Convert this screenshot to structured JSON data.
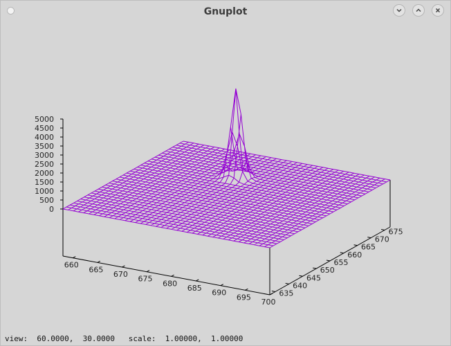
{
  "window": {
    "title": "Gnuplot",
    "controls": {
      "minimize_icon": "chevron-down-icon",
      "maximize_icon": "chevron-up-icon",
      "close_icon": "close-icon"
    }
  },
  "status": {
    "text": "view:  60.0000,  30.0000   scale:  1.00000,  1.00000"
  },
  "colors": {
    "surface": "#9400d3",
    "axes": "#000000",
    "background": "#d6d6d6"
  },
  "chart_data": {
    "type": "surface",
    "title": "",
    "view": [
      60,
      30
    ],
    "scale": [
      1,
      1
    ],
    "x_ticks": [
      660,
      665,
      670,
      675,
      680,
      685,
      690,
      695,
      700
    ],
    "y_ticks": [
      635,
      640,
      645,
      650,
      655,
      660,
      665,
      670,
      675
    ],
    "z_ticks": [
      0,
      500,
      1000,
      1500,
      2000,
      2500,
      3000,
      3500,
      4000,
      4500,
      5000
    ],
    "x_range": [
      658,
      700
    ],
    "y_range": [
      633,
      677
    ],
    "z_range": [
      0,
      5000
    ],
    "peak": {
      "x": 676,
      "y": 664,
      "z": 5000
    },
    "baseline_z": 0
  }
}
